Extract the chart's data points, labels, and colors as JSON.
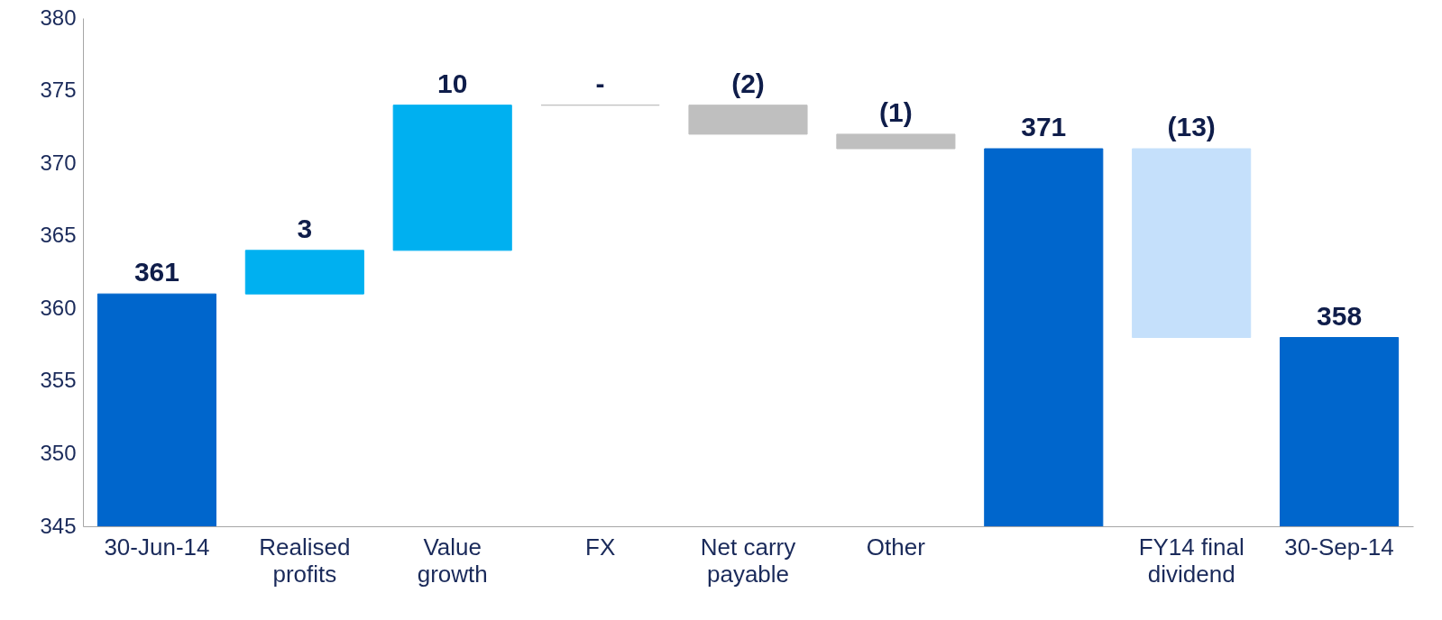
{
  "chart_data": {
    "type": "bar",
    "categories": [
      "30-Jun-14",
      "Realised\nprofits",
      "Value\ngrowth",
      "FX",
      "Net carry\npayable",
      "Other",
      null,
      "FY14 final\ndividend",
      "30-Sep-14"
    ],
    "values": [
      361,
      3,
      10,
      0,
      -2,
      -1,
      371,
      -13,
      358
    ],
    "base": [
      null,
      361,
      364,
      374,
      374,
      372,
      null,
      371,
      null
    ],
    "colors": [
      "#0066cc",
      "#00b0f0",
      "#00b0f0",
      "#bfbfbf",
      "#bfbfbf",
      "#bfbfbf",
      "#0066cc",
      "#c5e0fb",
      "#0066cc"
    ],
    "value_labels": [
      "361",
      "3",
      "10",
      "-",
      "(2)",
      "(1)",
      "371",
      "(13)",
      "358"
    ],
    "ylim": [
      345,
      380
    ],
    "yticks": [
      345,
      350,
      355,
      360,
      365,
      370,
      375,
      380
    ],
    "grid": false
  }
}
